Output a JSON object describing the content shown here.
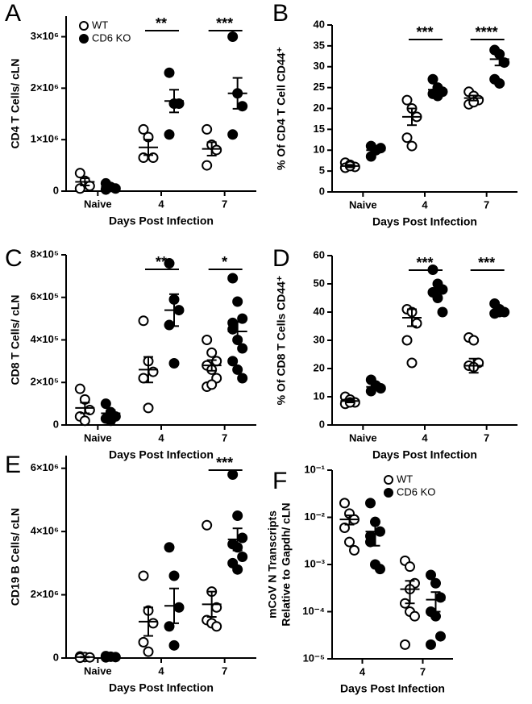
{
  "chart_data": [
    {
      "type": "dot",
      "panel": "A",
      "ylabel": [
        "CD4 T Cells/ cLN"
      ],
      "xlabel": "Days Post Infection",
      "categories": [
        "Naive",
        "4",
        "7"
      ],
      "ylim": [
        0,
        3400000
      ],
      "yticks": [
        0,
        {
          "value": 1000000,
          "label": "1×10⁶"
        },
        {
          "value": 2000000,
          "label": "2×10⁶"
        },
        {
          "value": 3000000,
          "label": "3×10⁶"
        }
      ],
      "legend": "upper left",
      "series": [
        {
          "name": "WT",
          "color": "#000000",
          "marker": "open",
          "values": [
            [
              350000,
              200000,
              100000,
              50000
            ],
            [
              1200000,
              1050000,
              650000,
              650000
            ],
            [
              1200000,
              900000,
              800000,
              500000
            ]
          ],
          "mean": [
            180000,
            850000,
            820000
          ],
          "sem": [
            70000,
            150000,
            130000
          ]
        },
        {
          "name": "CD6 KO",
          "color": "#000000",
          "marker": "filled",
          "values": [
            [
              150000,
              80000,
              50000,
              30000
            ],
            [
              2300000,
              1700000,
              1700000,
              1100000
            ],
            [
              3000000,
              1900000,
              1650000,
              1100000
            ]
          ],
          "mean": [
            80000,
            1750000,
            1900000
          ],
          "sem": [
            30000,
            220000,
            300000
          ]
        }
      ],
      "annotations": [
        {
          "category": "4",
          "text": "**"
        },
        {
          "category": "7",
          "text": "***"
        }
      ]
    },
    {
      "type": "dot",
      "panel": "B",
      "ylabel": [
        "% Of CD4 T Cell CD44⁺"
      ],
      "xlabel": "Days Post Infection",
      "categories": [
        "Naive",
        "4",
        "7"
      ],
      "ylim": [
        0,
        40
      ],
      "yticks": [
        0,
        5,
        10,
        15,
        20,
        25,
        30,
        35,
        40
      ],
      "series": [
        {
          "name": "WT",
          "color": "#000000",
          "marker": "open",
          "values": [
            [
              7,
              6.5,
              6,
              5.8,
              6.2
            ],
            [
              22,
              20,
              18,
              13,
              11
            ],
            [
              24,
              23,
              22,
              21,
              21.5
            ]
          ],
          "mean": [
            6.2,
            18,
            22.5
          ],
          "sem": [
            0.3,
            2,
            0.6
          ]
        },
        {
          "name": "CD6 KO",
          "color": "#000000",
          "marker": "filled",
          "values": [
            [
              11,
              10,
              10.5,
              8.5
            ],
            [
              27,
              25,
              24,
              23.5,
              23
            ],
            [
              34,
              33,
              31,
              27,
              26
            ]
          ],
          "mean": [
            10,
            24.5,
            31.8
          ],
          "sem": [
            0.6,
            0.8,
            1.5
          ]
        }
      ],
      "annotations": [
        {
          "category": "4",
          "text": "***"
        },
        {
          "category": "7",
          "text": "****"
        }
      ]
    },
    {
      "type": "dot",
      "panel": "C",
      "ylabel": [
        "CD8 T Cells/ cLN"
      ],
      "xlabel": "Days Post Infection",
      "categories": [
        "Naive",
        "4",
        "7"
      ],
      "ylim": [
        0,
        800000
      ],
      "yticks": [
        0,
        {
          "value": 200000,
          "label": "2×10⁵"
        },
        {
          "value": 400000,
          "label": "4×10⁵"
        },
        {
          "value": 600000,
          "label": "6×10⁵"
        },
        {
          "value": 800000,
          "label": "8×10⁵"
        }
      ],
      "series": [
        {
          "name": "WT",
          "color": "#000000",
          "marker": "open",
          "values": [
            [
              170000,
              120000,
              70000,
              40000,
              20000
            ],
            [
              490000,
              300000,
              250000,
              220000,
              80000
            ],
            [
              400000,
              340000,
              300000,
              280000,
              260000,
              220000,
              180000,
              190000
            ]
          ],
          "mean": [
            80000,
            260000,
            280000
          ],
          "sem": [
            25000,
            60000,
            25000
          ]
        },
        {
          "name": "CD6 KO",
          "color": "#000000",
          "marker": "filled",
          "values": [
            [
              100000,
              60000,
              40000,
              30000,
              20000
            ],
            [
              760000,
              590000,
              540000,
              470000,
              290000
            ],
            [
              690000,
              580000,
              500000,
              450000,
              400000,
              360000,
              300000,
              260000,
              220000,
              480000
            ]
          ],
          "mean": [
            55000,
            540000,
            440000
          ],
          "sem": [
            15000,
            75000,
            45000
          ]
        }
      ],
      "annotations": [
        {
          "category": "4",
          "text": "**"
        },
        {
          "category": "7",
          "text": "*"
        }
      ]
    },
    {
      "type": "dot",
      "panel": "D",
      "ylabel": [
        "% Of CD8 T Cells CD44⁺"
      ],
      "xlabel": "Days Post Infection",
      "categories": [
        "Naive",
        "4",
        "7"
      ],
      "ylim": [
        0,
        60
      ],
      "yticks": [
        0,
        10,
        20,
        30,
        40,
        50,
        60
      ],
      "series": [
        {
          "name": "WT",
          "color": "#000000",
          "marker": "open",
          "values": [
            [
              10,
              9,
              8,
              7.5,
              8
            ],
            [
              41,
              40,
              36,
              30,
              22
            ],
            [
              31,
              30,
              22,
              21,
              20.5
            ]
          ],
          "mean": [
            8.5,
            38,
            21
          ],
          "sem": [
            0.5,
            3,
            2.5
          ]
        },
        {
          "name": "CD6 KO",
          "color": "#000000",
          "marker": "filled",
          "values": [
            [
              16,
              14,
              13,
              12
            ],
            [
              55,
              50,
              48,
              47,
              45,
              40
            ],
            [
              43,
              41,
              40,
              39.5,
              40
            ]
          ],
          "mean": [
            13.5,
            47.5,
            40
          ],
          "sem": [
            0.8,
            2,
            0.7
          ]
        }
      ],
      "annotations": [
        {
          "category": "4",
          "text": "***"
        },
        {
          "category": "7",
          "text": "***"
        }
      ]
    },
    {
      "type": "dot",
      "panel": "E",
      "ylabel": [
        "CD19 B  Cells/ cLN"
      ],
      "xlabel": "Days Post Infection",
      "categories": [
        "Naive",
        "4",
        "7"
      ],
      "ylim": [
        0,
        6400000
      ],
      "yticks": [
        0,
        {
          "value": 2000000,
          "label": "2×10⁶"
        },
        {
          "value": 4000000,
          "label": "4×10⁶"
        },
        {
          "value": 6000000,
          "label": "6×10⁶"
        }
      ],
      "series": [
        {
          "name": "WT",
          "color": "#000000",
          "marker": "open",
          "values": [
            [
              50000,
              30000,
              20000,
              10000
            ],
            [
              2600000,
              1500000,
              1100000,
              500000,
              200000
            ],
            [
              4200000,
              2100000,
              1600000,
              1200000,
              1100000,
              1000000
            ]
          ],
          "mean": [
            30000,
            1150000,
            1700000
          ],
          "sem": [
            10000,
            450000,
            400000
          ]
        },
        {
          "name": "CD6 KO",
          "color": "#000000",
          "marker": "filled",
          "values": [
            [
              60000,
              40000,
              30000,
              20000
            ],
            [
              3500000,
              2600000,
              1600000,
              1000000,
              400000
            ],
            [
              5800000,
              4500000,
              3800000,
              3600000,
              3500000,
              3200000,
              3000000,
              2800000
            ]
          ],
          "mean": [
            40000,
            1650000,
            3750000
          ],
          "sem": [
            10000,
            550000,
            350000
          ]
        }
      ],
      "annotations": [
        {
          "category": "7",
          "text": "***"
        }
      ]
    },
    {
      "type": "dot",
      "panel": "F",
      "ylabel": [
        "mCoV N Transcripts",
        "Relative to Gapdh/ cLN"
      ],
      "xlabel": "Days Post Infection",
      "categories": [
        "4",
        "7"
      ],
      "yscale": "log",
      "ylim": [
        1e-05,
        0.1
      ],
      "yticks": [
        {
          "value": 1e-05,
          "label": "10⁻⁵"
        },
        {
          "value": 0.0001,
          "label": "10⁻⁴"
        },
        {
          "value": 0.001,
          "label": "10⁻³"
        },
        {
          "value": 0.01,
          "label": "10⁻²"
        },
        {
          "value": 0.1,
          "label": "10⁻¹"
        }
      ],
      "legend": "upper right",
      "series": [
        {
          "name": "WT",
          "color": "#000000",
          "marker": "open",
          "values": [
            [
              0.02,
              0.012,
              0.009,
              0.006,
              0.003,
              0.002
            ],
            [
              0.0012,
              0.0009,
              0.0004,
              0.00015,
              0.0001,
              8e-05,
              2e-05,
              0.0003
            ]
          ],
          "mean": [
            0.009,
            0.0003
          ],
          "sem": [
            0.002,
            0.00015
          ]
        },
        {
          "name": "CD6 KO",
          "color": "#000000",
          "marker": "filled",
          "values": [
            [
              0.02,
              0.008,
              0.005,
              0.003,
              0.001,
              0.0008,
              0.004
            ],
            [
              0.0006,
              0.0004,
              0.0002,
              0.0001,
              8e-05,
              3e-05,
              2e-05
            ]
          ],
          "mean": [
            0.005,
            0.00018
          ],
          "sem": [
            0.0025,
            8e-05
          ]
        }
      ]
    }
  ]
}
